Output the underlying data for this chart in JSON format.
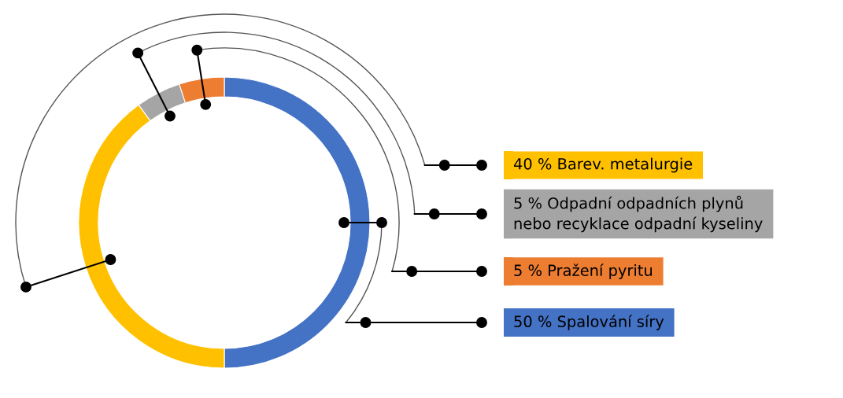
{
  "chart_data": {
    "type": "donut",
    "categories": [
      "50 % Spalování síry",
      "40 % Barev. metalurgie",
      "5 % Odpadní odpadních plynů\nnebo recyklace odpadní kyseliny",
      "5 % Pražení pyritu"
    ],
    "values": [
      50,
      40,
      5,
      5
    ],
    "colors": [
      "#4472c4",
      "#ffc000",
      "#a5a5a5",
      "#ed7d31"
    ],
    "legend": "right"
  }
}
